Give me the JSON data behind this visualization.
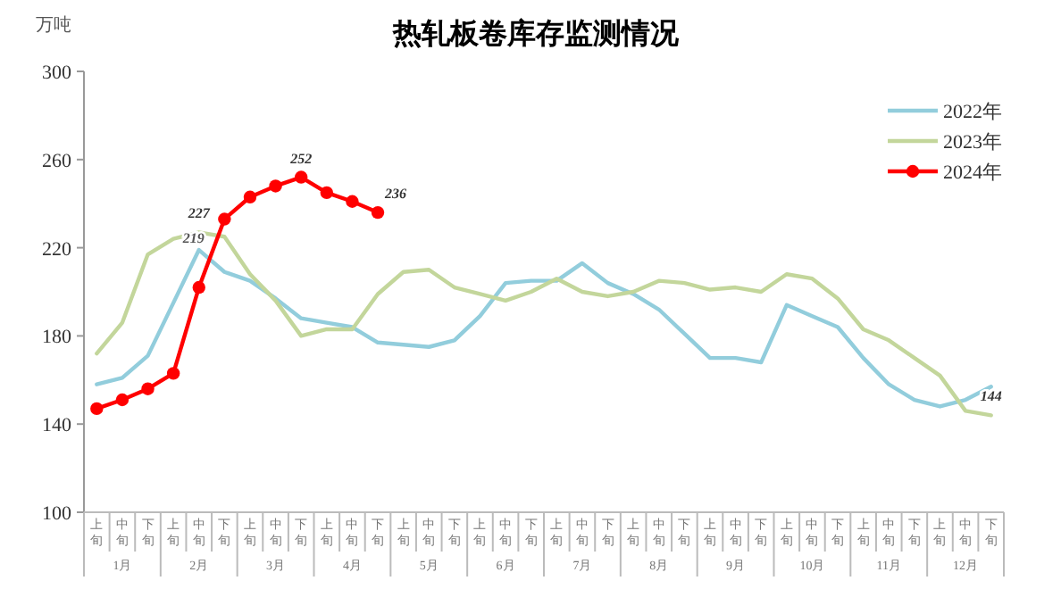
{
  "chart_data": {
    "type": "line",
    "title": "热轧板卷库存监测情况",
    "ylabel": "万吨",
    "categories": [
      "上旬",
      "中旬",
      "下旬",
      "上旬",
      "中旬",
      "下旬",
      "上旬",
      "中旬",
      "下旬",
      "上旬",
      "中旬",
      "下旬",
      "上旬",
      "中旬",
      "下旬",
      "上旬",
      "中旬",
      "下旬",
      "上旬",
      "中旬",
      "下旬",
      "上旬",
      "中旬",
      "下旬",
      "上旬",
      "中旬",
      "下旬",
      "上旬",
      "中旬",
      "下旬",
      "上旬",
      "中旬",
      "下旬",
      "上旬",
      "中旬",
      "下旬"
    ],
    "annotations": [
      "1月",
      "2月",
      "3月",
      "4月",
      "5月",
      "6月",
      "7月",
      "8月",
      "9月",
      "10月",
      "11月",
      "12月"
    ],
    "series": [
      {
        "name": "2022年",
        "color": "#92cddc",
        "marker": "none",
        "values": [
          158,
          161,
          171,
          195,
          219,
          209,
          205,
          197,
          188,
          186,
          184,
          177,
          176,
          175,
          178,
          189,
          204,
          205,
          205,
          213,
          204,
          199,
          192,
          181,
          170,
          170,
          168,
          194,
          189,
          184,
          170,
          158,
          151,
          148,
          151,
          157
        ],
        "value_labels": [
          null,
          null,
          null,
          null,
          "219",
          null,
          null,
          null,
          null,
          null,
          null,
          null,
          null,
          null,
          null,
          null,
          null,
          null,
          null,
          null,
          null,
          null,
          null,
          null,
          null,
          null,
          null,
          null,
          null,
          null,
          null,
          null,
          null,
          null,
          null,
          null
        ]
      },
      {
        "name": "2023年",
        "color": "#c3d69b",
        "marker": "none",
        "values": [
          172,
          186,
          217,
          224,
          227,
          225,
          208,
          196,
          180,
          183,
          183,
          199,
          209,
          210,
          202,
          199,
          196,
          200,
          206,
          200,
          198,
          200,
          205,
          204,
          201,
          202,
          200,
          208,
          206,
          197,
          183,
          178,
          170,
          162,
          146,
          144
        ],
        "value_labels": [
          null,
          null,
          null,
          null,
          "227",
          null,
          null,
          null,
          null,
          null,
          null,
          null,
          null,
          null,
          null,
          null,
          null,
          null,
          null,
          null,
          null,
          null,
          null,
          null,
          null,
          null,
          null,
          null,
          null,
          null,
          null,
          null,
          null,
          null,
          null,
          "144"
        ]
      },
      {
        "name": "2024年",
        "color": "#ff0000",
        "marker": "circle",
        "values": [
          147,
          151,
          156,
          163,
          202,
          233,
          243,
          248,
          252,
          245,
          241,
          236,
          null,
          null,
          null,
          null,
          null,
          null,
          null,
          null,
          null,
          null,
          null,
          null,
          null,
          null,
          null,
          null,
          null,
          null,
          null,
          null,
          null,
          null,
          null,
          null
        ],
        "value_labels": [
          null,
          null,
          null,
          null,
          null,
          null,
          null,
          null,
          "252",
          null,
          null,
          "236",
          null,
          null,
          null,
          null,
          null,
          null,
          null,
          null,
          null,
          null,
          null,
          null,
          null,
          null,
          null,
          null,
          null,
          null,
          null,
          null,
          null,
          null,
          null,
          null
        ]
      }
    ],
    "ylim": [
      100,
      300
    ],
    "yticks": [
      100,
      140,
      180,
      220,
      260,
      300
    ],
    "grid": false,
    "legend": "top right",
    "line_style": "solid"
  }
}
